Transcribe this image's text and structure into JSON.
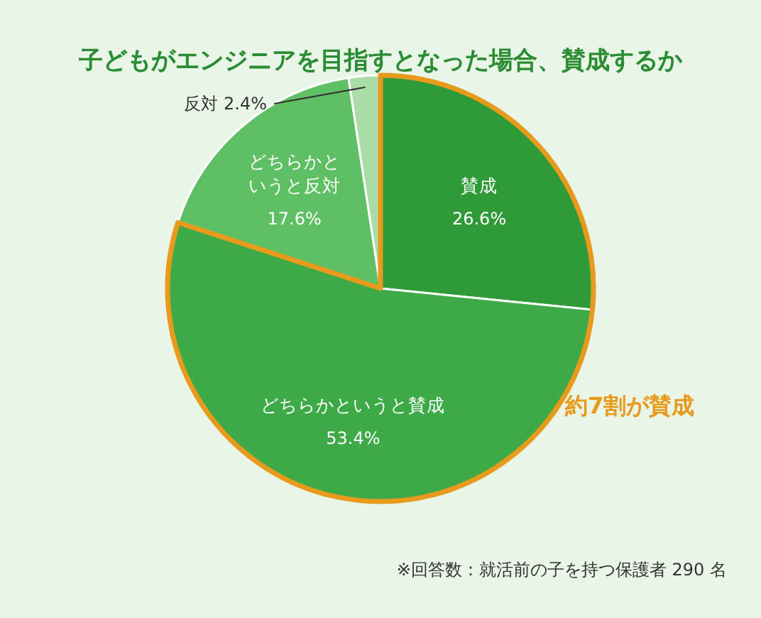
{
  "chart_data": {
    "type": "pie",
    "title": "子どもがエンジニアを目指すとなった場合、賛成するか",
    "categories": [
      "賛成",
      "どちらかというと賛成",
      "どちらかというと反対",
      "反対"
    ],
    "values": [
      26.6,
      53.4,
      17.6,
      2.4
    ],
    "value_labels": [
      "26.6%",
      "53.4%",
      "17.6%",
      "2.4%"
    ],
    "colors": [
      "#2f9a38",
      "#3daa47",
      "#5fbf64",
      "#a9dca6"
    ],
    "annotations": [
      "約7割が賛成",
      "※回答数：就活前の子を持つ保護者 290 名"
    ]
  }
}
